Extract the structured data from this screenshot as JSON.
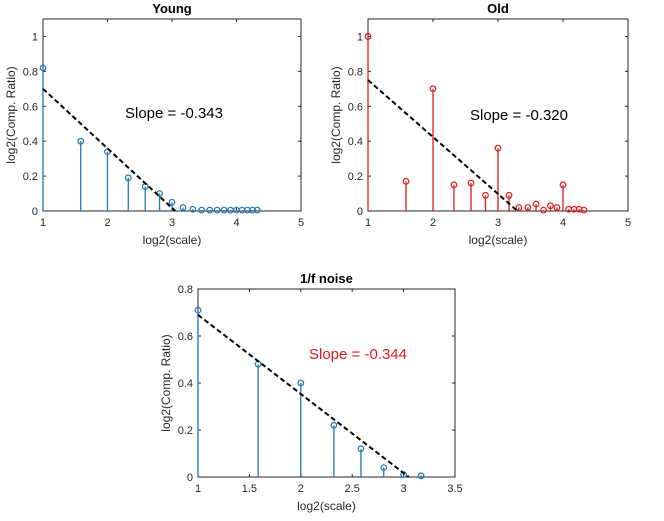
{
  "colors": {
    "young": "#1f77b4",
    "old": "#e01b1b",
    "noise": "#1f77b4",
    "fit": "#000000",
    "slope_red": "#e01b1b"
  },
  "chart_data": [
    {
      "type": "stem",
      "title": "Young",
      "xlabel": "log2(scale)",
      "ylabel": "log2(Comp. Ratio)",
      "xlim": [
        1,
        5
      ],
      "ylim": [
        0,
        1.1
      ],
      "xticks": [
        1,
        2,
        3,
        4,
        5
      ],
      "yticks": [
        0,
        0.2,
        0.4,
        0.6,
        0.8,
        1
      ],
      "x": [
        1.0,
        1.585,
        2.0,
        2.322,
        2.585,
        2.807,
        3.0,
        3.17,
        3.322,
        3.459,
        3.585,
        3.7,
        3.807,
        3.907,
        4.0,
        4.087,
        4.17,
        4.248,
        4.322
      ],
      "values": [
        0.82,
        0.4,
        0.34,
        0.19,
        0.14,
        0.1,
        0.05,
        0.02,
        0.01,
        0.005,
        0.005,
        0.005,
        0.005,
        0.005,
        0.005,
        0.005,
        0.005,
        0.005,
        0.005
      ],
      "fit": {
        "x": [
          1.0,
          3.05
        ],
        "y": [
          0.7,
          0.0
        ]
      },
      "annotation": "Slope = -0.343",
      "annotation_color": "#000000"
    },
    {
      "type": "stem",
      "title": "Old",
      "xlabel": "log2(scale)",
      "ylabel": "log2(Comp. Ratio)",
      "xlim": [
        1,
        5
      ],
      "ylim": [
        0,
        1.1
      ],
      "xticks": [
        1,
        2,
        3,
        4,
        5
      ],
      "yticks": [
        0,
        0.2,
        0.4,
        0.6,
        0.8,
        1
      ],
      "x": [
        1.0,
        1.585,
        2.0,
        2.322,
        2.585,
        2.807,
        3.0,
        3.17,
        3.322,
        3.459,
        3.585,
        3.7,
        3.807,
        3.907,
        4.0,
        4.087,
        4.17,
        4.248,
        4.322
      ],
      "values": [
        1.0,
        0.17,
        0.7,
        0.15,
        0.16,
        0.09,
        0.36,
        0.09,
        0.02,
        0.02,
        0.04,
        0.005,
        0.03,
        0.02,
        0.15,
        0.01,
        0.01,
        0.01,
        0.005
      ],
      "fit": {
        "x": [
          1.0,
          3.3
        ],
        "y": [
          0.75,
          0.0
        ]
      },
      "annotation": "Slope = -0.320",
      "annotation_color": "#000000"
    },
    {
      "type": "stem",
      "title": "1/f noise",
      "xlabel": "log2(scale)",
      "ylabel": "log2(Comp. Ratio)",
      "xlim": [
        1,
        3.5
      ],
      "ylim": [
        0,
        0.8
      ],
      "xticks": [
        1,
        1.5,
        2,
        2.5,
        3,
        3.5
      ],
      "yticks": [
        0,
        0.2,
        0.4,
        0.6,
        0.8
      ],
      "x": [
        1.0,
        1.585,
        2.0,
        2.322,
        2.585,
        2.807,
        3.0,
        3.17
      ],
      "values": [
        0.71,
        0.48,
        0.4,
        0.22,
        0.12,
        0.04,
        0.01,
        0.005
      ],
      "fit": {
        "x": [
          1.0,
          3.05
        ],
        "y": [
          0.69,
          0.0
        ]
      },
      "annotation": "Slope = -0.344",
      "annotation_color": "#e01b1b"
    }
  ]
}
